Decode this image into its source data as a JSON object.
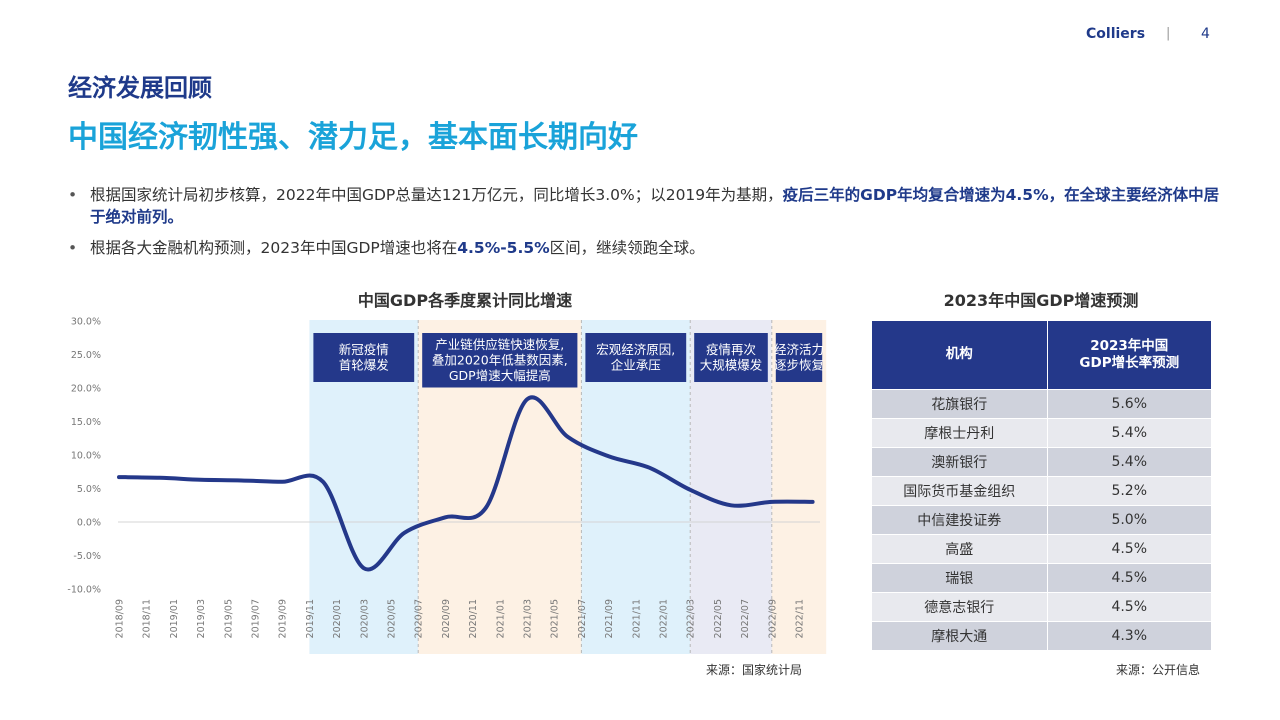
{
  "header": {
    "brand": "Colliers",
    "separator": "|",
    "page_number": "4"
  },
  "section_title": "经济发展回顾",
  "headline": "中国经济韧性强、潜力足，基本面长期向好",
  "bullets": [
    {
      "text": "根据国家统计局初步核算，2022年中国GDP总量达121万亿元，同比增长3.0%；以2019年为基期，",
      "highlight": "疫后三年的GDP年均复合增速为4.5%，在全球主要经济体中居于绝对前列。"
    },
    {
      "text_before": "根据各大金融机构预测，2023年中国GDP增速也将在",
      "highlight": "4.5%-5.5%",
      "text_after": "区间，继续领跑全球。"
    }
  ],
  "chart_data": {
    "type": "line",
    "title": "中国GDP各季度累计同比增速",
    "source": "来源：国家统计局",
    "y_ticks": [
      "30.0%",
      "25.0%",
      "20.0%",
      "15.0%",
      "10.0%",
      "5.0%",
      "0.0%",
      "-5.0%",
      "-10.0%"
    ],
    "ylim": [
      -10,
      30
    ],
    "x_tick_labels": [
      "2018/09",
      "2018/11",
      "2019/01",
      "2019/03",
      "2019/05",
      "2019/07",
      "2019/09",
      "2019/11",
      "2020/01",
      "2020/03",
      "2020/05",
      "2020/07",
      "2020/09",
      "2020/11",
      "2021/01",
      "2021/03",
      "2021/05",
      "2021/07",
      "2021/09",
      "2021/11",
      "2022/01",
      "2022/03",
      "2022/05",
      "2022/07",
      "2022/09",
      "2022/11"
    ],
    "series": [
      {
        "color": "#24388a",
        "points": [
          [
            "2018/09",
            6.7
          ],
          [
            "2018/12",
            6.6
          ],
          [
            "2019/03",
            6.3
          ],
          [
            "2019/06",
            6.2
          ],
          [
            "2019/09",
            6.0
          ],
          [
            "2019/12",
            6.0
          ],
          [
            "2020/03",
            -6.9
          ],
          [
            "2020/06",
            -1.6
          ],
          [
            "2020/09",
            0.7
          ],
          [
            "2020/12",
            2.2
          ],
          [
            "2021/03",
            18.3
          ],
          [
            "2021/06",
            12.7
          ],
          [
            "2021/09",
            9.8
          ],
          [
            "2021/12",
            8.1
          ],
          [
            "2022/03",
            4.8
          ],
          [
            "2022/06",
            2.5
          ],
          [
            "2022/09",
            3.0
          ],
          [
            "2022/12",
            3.0
          ]
        ]
      }
    ],
    "phases": [
      {
        "label_lines": [
          "新冠疫情",
          "首轮爆发"
        ],
        "start": "2019/11",
        "end": "2020/07",
        "fill": "#dff1fb"
      },
      {
        "label_lines": [
          "产业链供应链快速恢复,",
          "叠加2020年低基数因素,",
          "GDP增速大幅提高"
        ],
        "start": "2020/07",
        "end": "2021/07",
        "fill": "#fdf1e4"
      },
      {
        "label_lines": [
          "宏观经济原因,",
          "企业承压"
        ],
        "start": "2021/07",
        "end": "2022/03",
        "fill": "#dff1fb"
      },
      {
        "label_lines": [
          "疫情再次",
          "大规模爆发"
        ],
        "start": "2022/03",
        "end": "2022/09",
        "fill": "#e9eaf4"
      },
      {
        "label_lines": [
          "经济活力",
          "逐步恢复"
        ],
        "start": "2022/09",
        "end": "2023/01",
        "fill": "#fdf1e4"
      }
    ]
  },
  "forecast_table": {
    "title": "2023年中国GDP增速预测",
    "source": "来源：公开信息",
    "header_institution": "机构",
    "header_rate_line1": "2023年中国",
    "header_rate_line2": "GDP增长率预测",
    "rows": [
      {
        "institution": "花旗银行",
        "rate": "5.6%"
      },
      {
        "institution": "摩根士丹利",
        "rate": "5.4%"
      },
      {
        "institution": "澳新银行",
        "rate": "5.4%"
      },
      {
        "institution": "国际货币基金组织",
        "rate": "5.2%"
      },
      {
        "institution": "中信建投证券",
        "rate": "5.0%"
      },
      {
        "institution": "高盛",
        "rate": "4.5%"
      },
      {
        "institution": "瑞银",
        "rate": "4.5%"
      },
      {
        "institution": "德意志银行",
        "rate": "4.5%"
      },
      {
        "institution": "摩根大通",
        "rate": "4.3%"
      }
    ]
  }
}
